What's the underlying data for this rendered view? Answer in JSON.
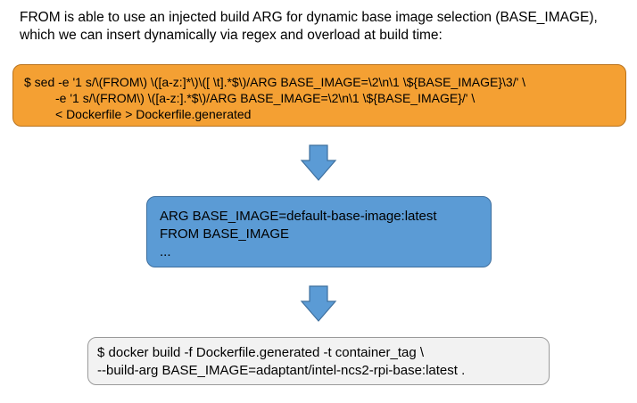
{
  "intro": {
    "lines": [
      "FROM is able to use an injected build ARG for dynamic base image selection (BASE_IMAGE),",
      "which we can insert dynamically via regex and overload at build time:"
    ]
  },
  "sed_box": {
    "lines": [
      "$ sed -e '1 s/\\(FROM\\) \\([a-z:]*\\)\\([ \\t].*$\\)/ARG BASE_IMAGE=\\2\\n\\1 \\${BASE_IMAGE}\\3/' \\",
      "         -e '1 s/\\(FROM\\) \\([a-z:].*$\\)/ARG BASE_IMAGE=\\2\\n\\1 \\${BASE_IMAGE}/' \\",
      "         < Dockerfile > Dockerfile.generated"
    ],
    "color": "#f4a033"
  },
  "arg_box": {
    "lines": [
      "ARG BASE_IMAGE=default-base-image:latest",
      "FROM BASE_IMAGE",
      "..."
    ],
    "color": "#5b9bd5"
  },
  "docker_box": {
    "lines": [
      "$ docker build -f Dockerfile.generated -t container_tag \\",
      "--build-arg BASE_IMAGE=adaptant/intel-ncs2-rpi-base:latest ."
    ],
    "color": "#f2f2f2"
  },
  "arrows": {
    "icon": "arrow-down-icon",
    "color": "#5b9bd5"
  }
}
